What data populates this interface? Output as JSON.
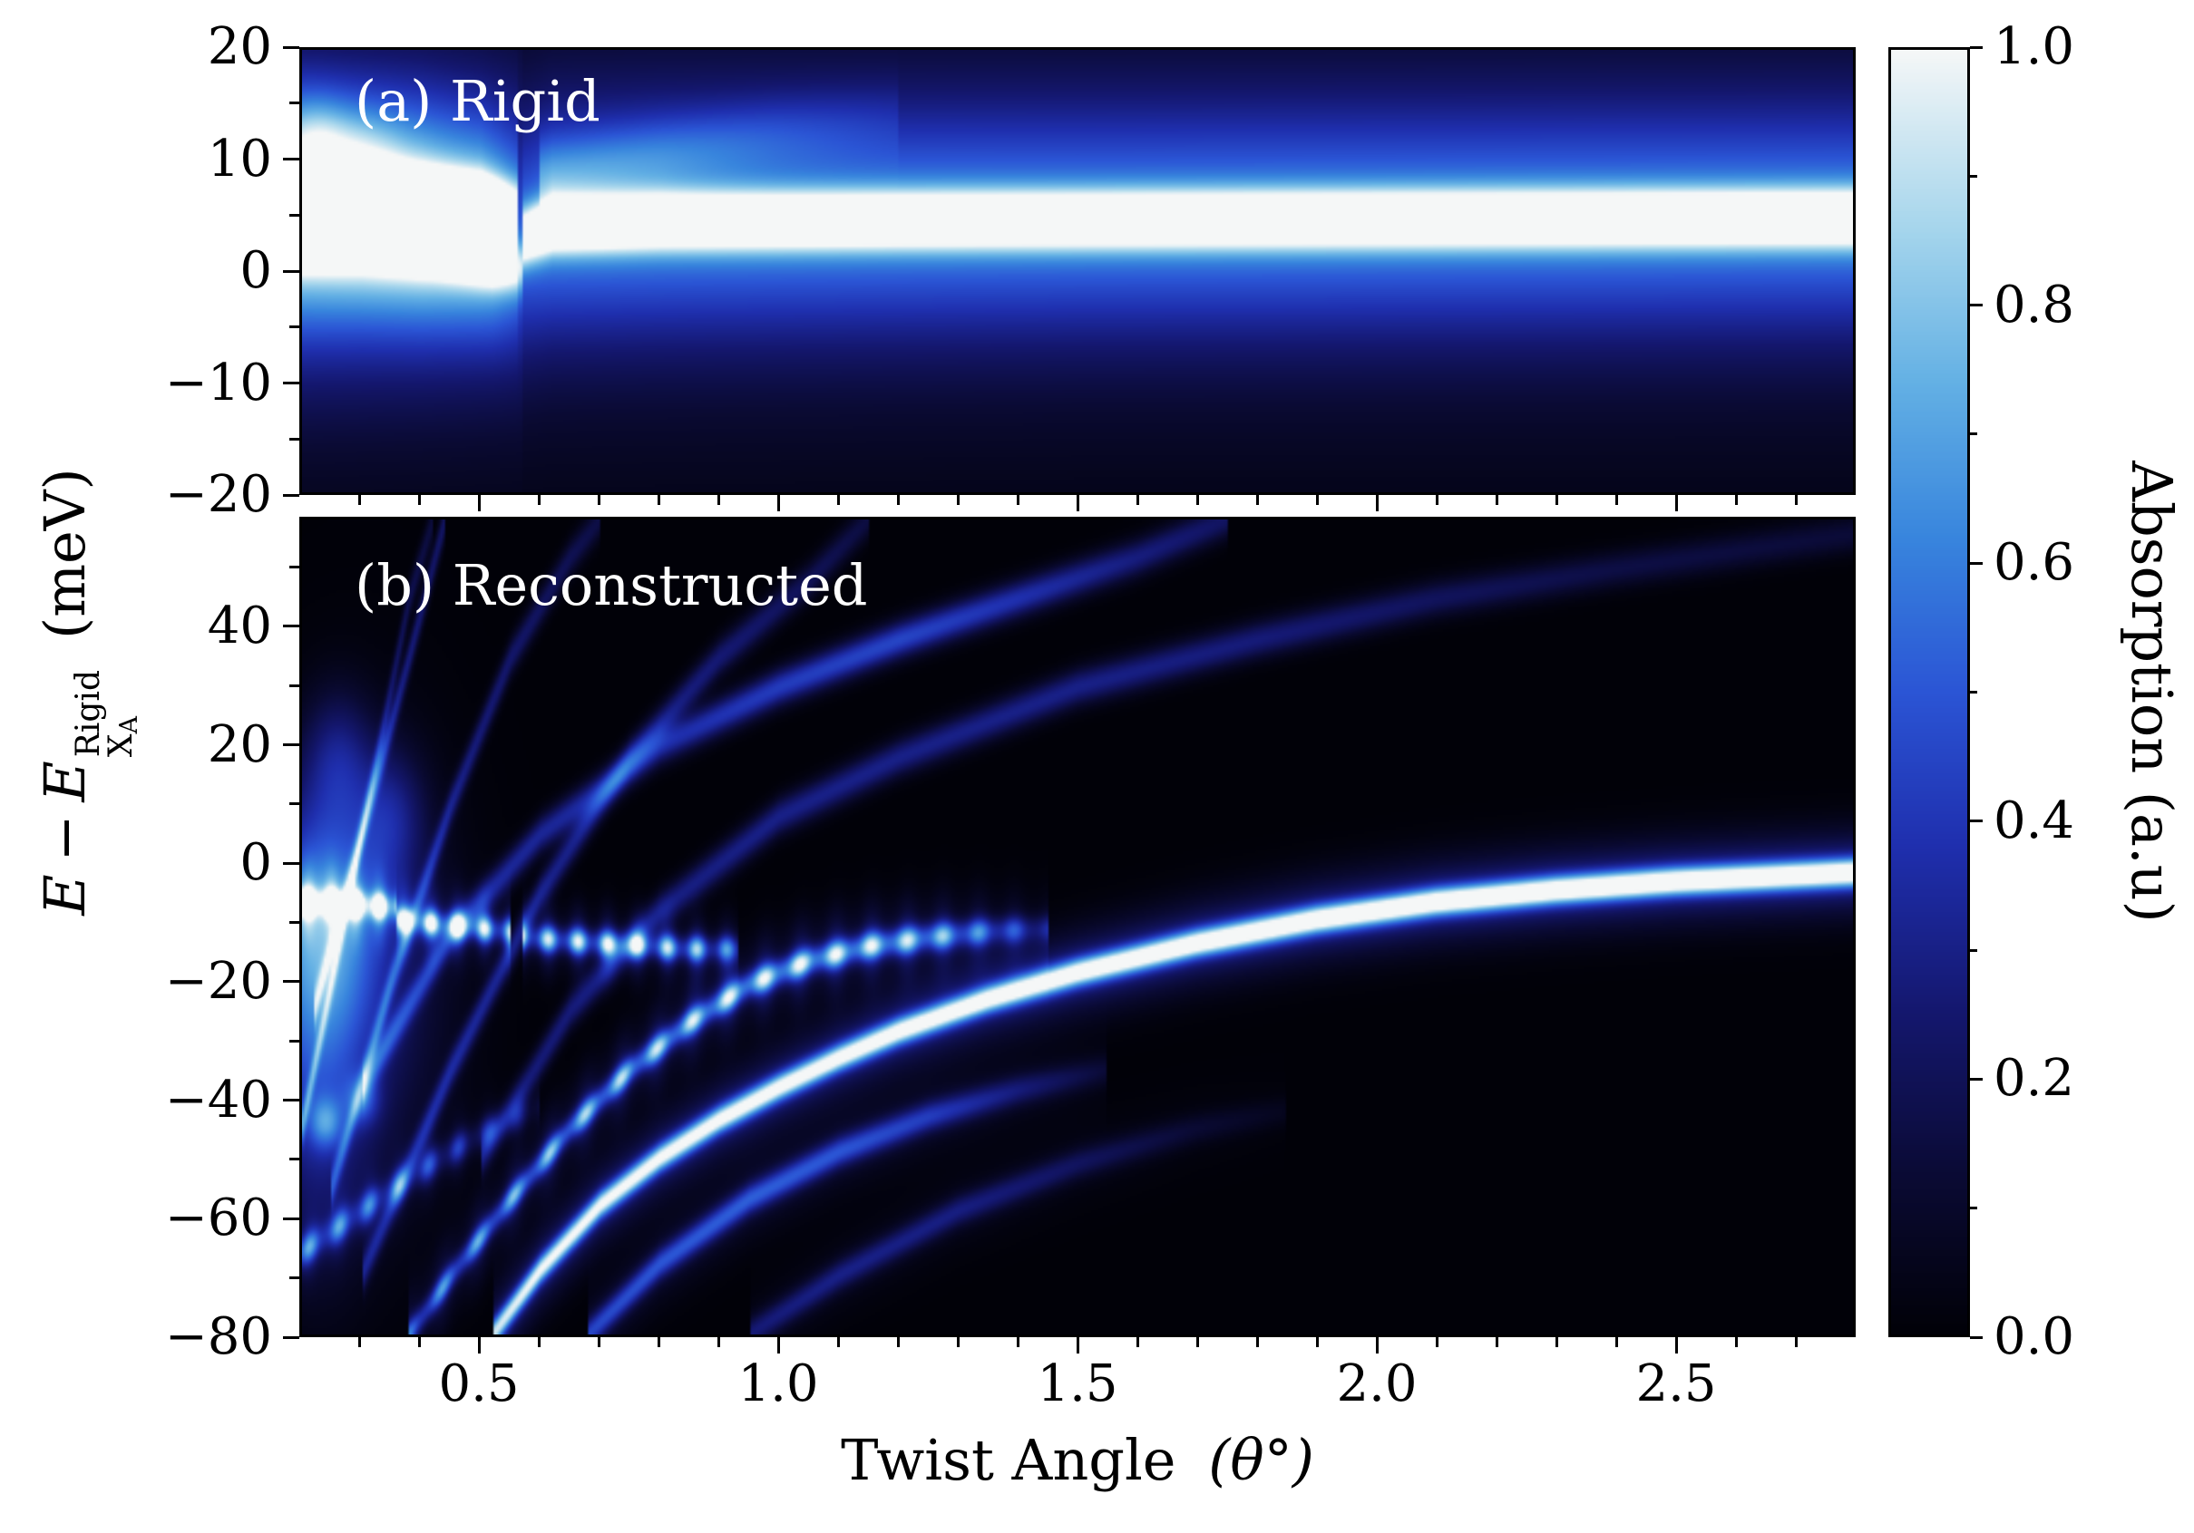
{
  "labels": {
    "xlabel": "Twist Angle",
    "xsymbol": "(θ°)",
    "ylabel_e": "E",
    "ylabel_minus": "−",
    "ylabel_e2": "E",
    "ylabel_sup": "Rigid",
    "ylabel_sub": "X",
    "ylabel_subsub": "A",
    "ylabel_unit": "(meV)"
  },
  "colorbar": {
    "label": "Absorption (a.u)",
    "tick_values": [
      1.0,
      0.8,
      0.6,
      0.4,
      0.2,
      0.0
    ],
    "tick_labels": [
      "1.0",
      "0.8",
      "0.6",
      "0.4",
      "0.2",
      "0.0"
    ],
    "minor_tick_values": [
      0.9,
      0.7,
      0.5,
      0.3,
      0.1
    ],
    "stops": [
      [
        0.0,
        "#010108"
      ],
      [
        0.12,
        "#0a0a33"
      ],
      [
        0.25,
        "#14176e"
      ],
      [
        0.38,
        "#1f2fae"
      ],
      [
        0.5,
        "#2b55d5"
      ],
      [
        0.62,
        "#3885dd"
      ],
      [
        0.74,
        "#63b0e4"
      ],
      [
        0.86,
        "#a5d5ec"
      ],
      [
        1.0,
        "#f5f7f7"
      ]
    ]
  },
  "chart_data": [
    {
      "type": "heatmap",
      "title": "(a) Rigid",
      "x_range": [
        0.2,
        2.8
      ],
      "y_range": [
        -20,
        20
      ],
      "x_ticks": [
        0.5,
        1.0,
        1.5,
        2.0,
        2.5
      ],
      "x_minor_ticks": [
        0.3,
        0.4,
        0.6,
        0.7,
        0.8,
        0.9,
        1.1,
        1.2,
        1.3,
        1.4,
        1.6,
        1.7,
        1.8,
        1.9,
        2.1,
        2.2,
        2.3,
        2.4,
        2.6,
        2.7
      ],
      "y_ticks": [
        20,
        10,
        0,
        -10,
        -20
      ],
      "y_tick_labels": [
        "20",
        "10",
        "0",
        "−10",
        "−20"
      ],
      "y_minor_ticks": [
        -15,
        -5,
        5,
        15
      ],
      "branches": [
        {
          "name": "main-exciton-line",
          "sigma": 1.7,
          "halo_sigma": 7,
          "halo_amp": 0.45,
          "points": [
            [
              0.57,
              3.0,
              0.85
            ],
            [
              0.62,
              4.2,
              0.98
            ],
            [
              0.8,
              4.5,
              1.0
            ],
            [
              1.2,
              4.6,
              1.0
            ],
            [
              2.0,
              4.7,
              1.0
            ],
            [
              2.8,
              4.8,
              1.0
            ]
          ]
        },
        {
          "name": "broad-glow",
          "sigma": 16,
          "points": [
            [
              0.2,
              4.0,
              0.2
            ],
            [
              0.6,
              4.3,
              0.18
            ],
            [
              1.5,
              4.6,
              0.17
            ],
            [
              2.8,
              4.8,
              0.17
            ]
          ]
        },
        {
          "name": "low-angle-upper-line",
          "sigma": 1.7,
          "halo_sigma": 6,
          "halo_amp": 0.4,
          "points": [
            [
              0.2,
              6.9,
              0.88
            ],
            [
              0.35,
              6.7,
              0.92
            ],
            [
              0.5,
              6.2,
              0.88
            ],
            [
              0.56,
              5.5,
              0.55
            ]
          ]
        },
        {
          "name": "low-angle-lower-line",
          "sigma": 1.6,
          "halo_sigma": 5,
          "halo_amp": 0.35,
          "points": [
            [
              0.2,
              2.4,
              0.55
            ],
            [
              0.3,
              2.8,
              0.72
            ],
            [
              0.42,
              2.2,
              0.78
            ],
            [
              0.52,
              1.0,
              0.72
            ],
            [
              0.57,
              0.3,
              0.4
            ]
          ]
        },
        {
          "name": "low-angle-glow",
          "sigma": 9,
          "points": [
            [
              0.2,
              4.5,
              0.4
            ],
            [
              0.4,
              4.0,
              0.35
            ],
            [
              0.57,
              2.8,
              0.22
            ]
          ]
        },
        {
          "name": "faint-upper-diagonal",
          "sigma": 2.4,
          "points": [
            [
              0.6,
              8.5,
              0.22
            ],
            [
              0.8,
              10.5,
              0.18
            ],
            [
              1.0,
              12.5,
              0.12
            ],
            [
              1.2,
              14.0,
              0.06
            ]
          ]
        }
      ],
      "blobs": [
        [
          0.22,
          11.5,
          0.28,
          0.04,
          3
        ],
        [
          0.3,
          10.5,
          0.18,
          0.05,
          3
        ]
      ]
    },
    {
      "type": "heatmap",
      "title": "(b) Reconstructed",
      "x_range": [
        0.2,
        2.8
      ],
      "y_range": [
        -80,
        58.5
      ],
      "x_ticks": [
        0.5,
        1.0,
        1.5,
        2.0,
        2.5
      ],
      "x_tick_labels": [
        "0.5",
        "1.0",
        "1.5",
        "2.0",
        "2.5"
      ],
      "x_minor_ticks": [
        0.3,
        0.4,
        0.6,
        0.7,
        0.8,
        0.9,
        1.1,
        1.2,
        1.3,
        1.4,
        1.6,
        1.7,
        1.8,
        1.9,
        2.1,
        2.2,
        2.3,
        2.4,
        2.6,
        2.7
      ],
      "y_ticks": [
        40,
        20,
        0,
        -20,
        -40,
        -60,
        -80
      ],
      "y_tick_labels": [
        "40",
        "20",
        "0",
        "−20",
        "−40",
        "−60",
        "−80"
      ],
      "y_minor_ticks": [
        -70,
        -50,
        -30,
        -10,
        10,
        30,
        50
      ],
      "branches": [
        {
          "name": "main-branch",
          "sigma": 1.6,
          "halo_sigma": 5,
          "halo_amp": 0.3,
          "points": [
            [
              0.52,
              -80,
              0.72
            ],
            [
              0.6,
              -69,
              0.78
            ],
            [
              0.7,
              -58,
              0.8
            ],
            [
              0.8,
              -50,
              0.82
            ],
            [
              0.9,
              -43.5,
              0.84
            ],
            [
              1.0,
              -38,
              0.85
            ],
            [
              1.1,
              -33,
              0.86
            ],
            [
              1.2,
              -28.5,
              0.88
            ],
            [
              1.35,
              -23,
              0.9
            ],
            [
              1.5,
              -18.5,
              0.92
            ],
            [
              1.7,
              -13.5,
              0.95
            ],
            [
              1.9,
              -9.5,
              0.97
            ],
            [
              2.1,
              -6.5,
              0.99
            ],
            [
              2.3,
              -4.5,
              1.0
            ],
            [
              2.5,
              -3.0,
              1.0
            ],
            [
              2.8,
              -1.5,
              1.0
            ]
          ]
        },
        {
          "name": "second-branch",
          "sigma": 1.6,
          "halo_sigma": 5,
          "halo_amp": 0.3,
          "dash": 0.06,
          "dash_min": 0.55,
          "points": [
            [
              0.38,
              -80,
              0.5
            ],
            [
              0.45,
              -70,
              0.55
            ],
            [
              0.55,
              -57,
              0.62
            ],
            [
              0.65,
              -45,
              0.68
            ],
            [
              0.75,
              -35,
              0.72
            ],
            [
              0.85,
              -27,
              0.76
            ],
            [
              0.95,
              -20.5,
              0.8
            ],
            [
              1.05,
              -16.5,
              0.82
            ],
            [
              1.15,
              -14,
              0.8
            ],
            [
              1.25,
              -12.5,
              0.72
            ],
            [
              1.35,
              -11.5,
              0.5
            ],
            [
              1.45,
              -11,
              0.25
            ]
          ]
        },
        {
          "name": "third-branch",
          "sigma": 1.8,
          "halo_sigma": 5,
          "halo_amp": 0.25,
          "points": [
            [
              0.68,
              -80,
              0.36
            ],
            [
              0.8,
              -68,
              0.4
            ],
            [
              0.95,
              -57,
              0.42
            ],
            [
              1.1,
              -49,
              0.4
            ],
            [
              1.25,
              -43,
              0.34
            ],
            [
              1.4,
              -38.5,
              0.22
            ],
            [
              1.55,
              -35,
              0.1
            ]
          ]
        },
        {
          "name": "fourth-branch",
          "sigma": 1.8,
          "halo_sigma": 5,
          "halo_amp": 0.2,
          "points": [
            [
              0.95,
              -80,
              0.22
            ],
            [
              1.1,
              -70,
              0.25
            ],
            [
              1.3,
              -59,
              0.24
            ],
            [
              1.5,
              -51,
              0.18
            ],
            [
              1.7,
              -45,
              0.1
            ],
            [
              1.85,
              -42,
              0.05
            ]
          ]
        },
        {
          "name": "stair-segment-1",
          "sigma": 1.5,
          "halo_sigma": 4,
          "halo_amp": 0.3,
          "dash": 0.04,
          "points": [
            [
              0.2,
              -6.5,
              0.92
            ],
            [
              0.3,
              -7,
              0.92
            ],
            [
              0.36,
              -7.5,
              0.8
            ]
          ]
        },
        {
          "name": "stair-segment-2",
          "sigma": 1.5,
          "halo_sigma": 4,
          "halo_amp": 0.3,
          "dash": 0.045,
          "points": [
            [
              0.36,
              -9.5,
              0.8
            ],
            [
              0.45,
              -10.5,
              0.85
            ],
            [
              0.55,
              -11.5,
              0.72
            ]
          ]
        },
        {
          "name": "stair-segment-3",
          "sigma": 1.5,
          "halo_sigma": 4,
          "halo_amp": 0.3,
          "dash": 0.05,
          "points": [
            [
              0.57,
              -12.5,
              0.72
            ],
            [
              0.7,
              -13.5,
              0.8
            ],
            [
              0.85,
              -14.5,
              0.72
            ],
            [
              0.93,
              -14.5,
              0.45
            ]
          ]
        },
        {
          "name": "fan-line-1",
          "sigma": 2.2,
          "points": [
            [
              0.3,
              -38,
              0.3
            ],
            [
              0.45,
              -12,
              0.32
            ],
            [
              0.6,
              5,
              0.33
            ],
            [
              0.8,
              20,
              0.36
            ],
            [
              1.0,
              30,
              0.42
            ],
            [
              1.2,
              38,
              0.45
            ],
            [
              1.4,
              45,
              0.38
            ],
            [
              1.6,
              52,
              0.28
            ],
            [
              1.75,
              58.5,
              0.22
            ]
          ]
        },
        {
          "name": "fan-line-2",
          "sigma": 2.2,
          "points": [
            [
              0.5,
              -50,
              0.25
            ],
            [
              0.65,
              -25,
              0.27
            ],
            [
              0.8,
              -8,
              0.28
            ],
            [
              1.0,
              8,
              0.3
            ],
            [
              1.2,
              18,
              0.3
            ],
            [
              1.5,
              30,
              0.3
            ],
            [
              1.8,
              38,
              0.27
            ],
            [
              2.1,
              45,
              0.21
            ],
            [
              2.4,
              50,
              0.16
            ],
            [
              2.8,
              56,
              0.13
            ]
          ]
        },
        {
          "name": "fan-line-3",
          "sigma": 2.2,
          "points": [
            [
              0.22,
              -25,
              0.3
            ],
            [
              0.3,
              5,
              0.3
            ],
            [
              0.38,
              35,
              0.26
            ],
            [
              0.44,
              58.5,
              0.22
            ]
          ]
        },
        {
          "name": "fan-line-4",
          "sigma": 2.2,
          "points": [
            [
              0.25,
              -55,
              0.28
            ],
            [
              0.35,
              -20,
              0.3
            ],
            [
              0.45,
              10,
              0.28
            ],
            [
              0.55,
              35,
              0.24
            ],
            [
              0.65,
              52,
              0.19
            ],
            [
              0.7,
              58.5,
              0.16
            ]
          ]
        },
        {
          "name": "fan-line-5",
          "sigma": 2.2,
          "points": [
            [
              0.3,
              -70,
              0.26
            ],
            [
              0.45,
              -35,
              0.3
            ],
            [
              0.6,
              -5,
              0.3
            ],
            [
              0.75,
              18,
              0.3
            ],
            [
              0.9,
              35,
              0.26
            ],
            [
              1.05,
              48,
              0.2
            ],
            [
              1.15,
              58.5,
              0.15
            ]
          ]
        },
        {
          "name": "fan-line-6",
          "sigma": 2.2,
          "points": [
            [
              0.2,
              -45,
              0.32
            ],
            [
              0.26,
              -15,
              0.28
            ],
            [
              0.32,
              15,
              0.24
            ],
            [
              0.38,
              45,
              0.18
            ],
            [
              0.42,
              58.5,
              0.14
            ]
          ]
        },
        {
          "name": "dashed-low-curve",
          "sigma": 1.8,
          "halo_sigma": 4,
          "halo_amp": 0.25,
          "dash": 0.05,
          "points": [
            [
              0.2,
              -66,
              0.5
            ],
            [
              0.3,
              -59,
              0.46
            ],
            [
              0.4,
              -52,
              0.4
            ],
            [
              0.5,
              -46,
              0.3
            ],
            [
              0.6,
              -41,
              0.18
            ]
          ]
        }
      ],
      "blobs": [
        [
          0.23,
          -10,
          0.45,
          0.07,
          14
        ],
        [
          0.22,
          -35,
          0.28,
          0.06,
          22
        ],
        [
          0.3,
          -20,
          0.22,
          0.1,
          25
        ],
        [
          0.24,
          -44,
          0.35,
          0.02,
          3
        ],
        [
          0.3,
          -40,
          0.3,
          0.02,
          3
        ],
        [
          0.26,
          18,
          0.22,
          0.04,
          8
        ],
        [
          0.35,
          8,
          0.22,
          0.04,
          8
        ]
      ]
    }
  ]
}
